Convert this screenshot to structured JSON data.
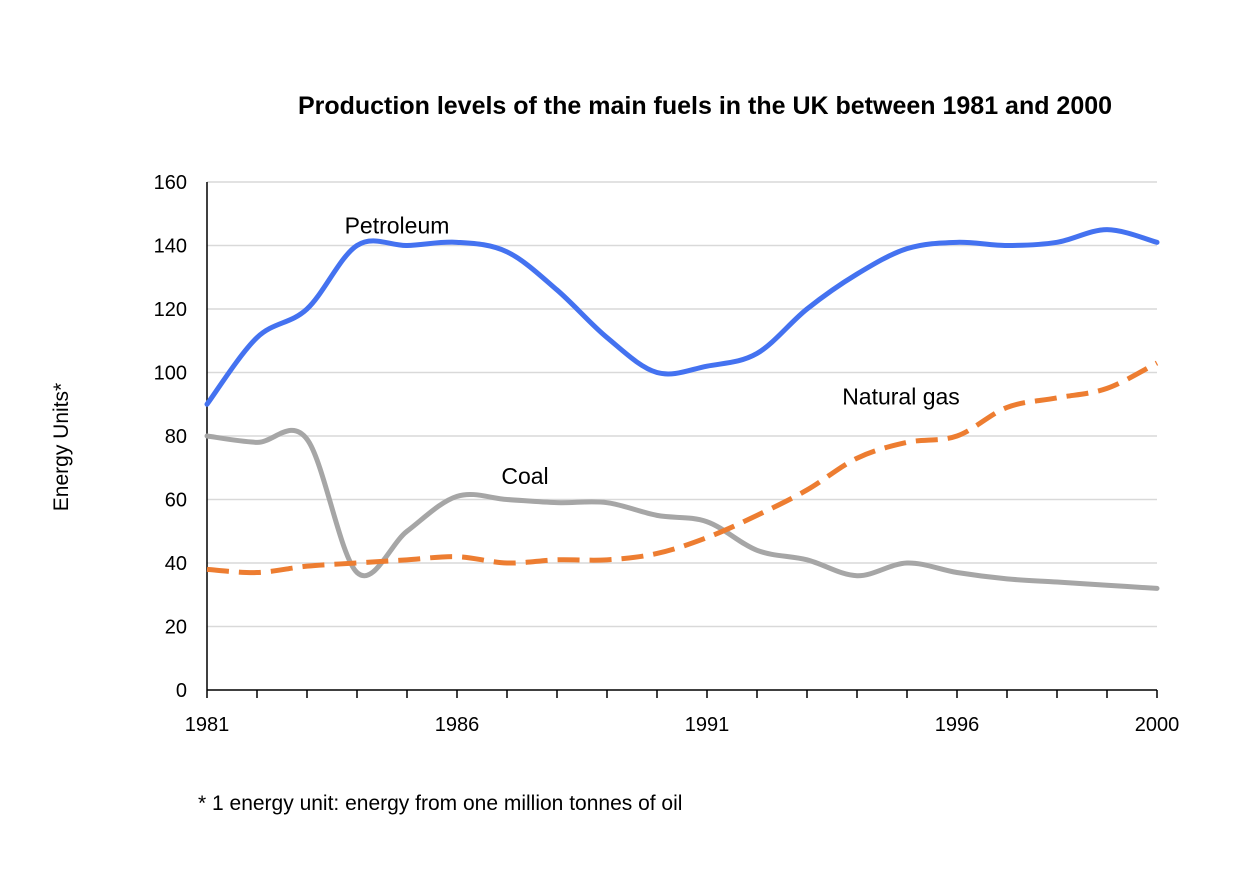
{
  "chart_data": {
    "type": "line",
    "title": "Production levels of the main fuels in the UK between 1981 and 2000",
    "xlabel": "",
    "ylabel": "Energy Units*",
    "ylim": [
      0,
      160
    ],
    "yticks": [
      0,
      20,
      40,
      60,
      80,
      100,
      120,
      140,
      160
    ],
    "xlim": [
      1981,
      2000
    ],
    "xtick_labels": [
      "1981",
      "1986",
      "1991",
      "1996",
      "2000"
    ],
    "x": [
      1981,
      1982,
      1983,
      1984,
      1985,
      1986,
      1987,
      1988,
      1989,
      1990,
      1991,
      1992,
      1993,
      1994,
      1995,
      1996,
      1997,
      1998,
      1999,
      2000
    ],
    "series": [
      {
        "name": "Petroleum",
        "color": "#4472f0",
        "dashed": false,
        "values": [
          90,
          111,
          120,
          140,
          140,
          141,
          138,
          126,
          111,
          100,
          102,
          106,
          120,
          131,
          139,
          141,
          140,
          141,
          145,
          141
        ]
      },
      {
        "name": "Natural gas",
        "color": "#ed7d31",
        "dashed": true,
        "values": [
          38,
          37,
          39,
          40,
          41,
          42,
          40,
          41,
          41,
          43,
          48,
          55,
          63,
          73,
          78,
          80,
          89,
          92,
          95,
          103
        ]
      },
      {
        "name": "Coal",
        "color": "#a6a6a6",
        "dashed": false,
        "values": [
          80,
          78,
          79,
          37,
          50,
          61,
          60,
          59,
          59,
          55,
          53,
          44,
          41,
          36,
          40,
          37,
          35,
          34,
          33,
          32
        ]
      }
    ],
    "annotations": [
      {
        "text": "Petroleum",
        "series": "Petroleum"
      },
      {
        "text": "Natural gas",
        "series": "Natural gas"
      },
      {
        "text": "Coal",
        "series": "Coal"
      }
    ],
    "grid": true,
    "footnote": "* 1 energy  unit: energy from one million tonnes of oil"
  }
}
